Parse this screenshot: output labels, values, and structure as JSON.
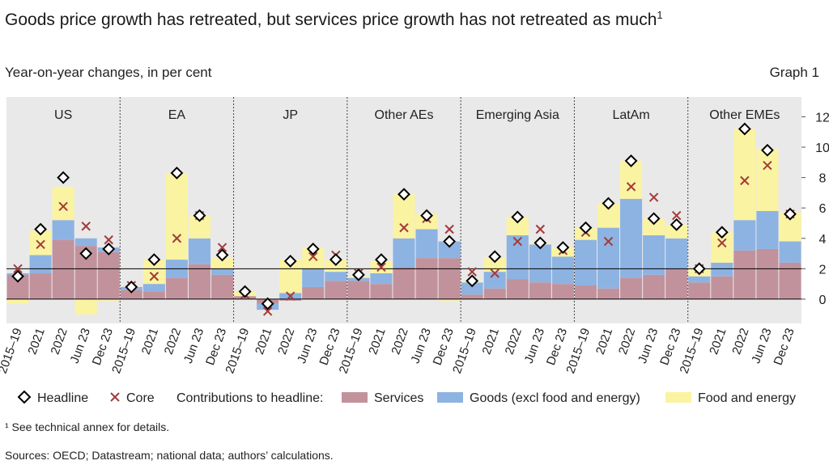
{
  "header": {
    "title": "Goods price growth has retreated, but services price growth has not retreated as much",
    "title_footnote_mark": "1",
    "subtitle": "Year-on-year changes, in per cent",
    "graph_label": "Graph 1"
  },
  "footer": {
    "footnote": "¹  See technical annex for details.",
    "sources": "Sources: OECD; Datastream; national data; authors’ calculations."
  },
  "colors": {
    "services": "#c2929c",
    "goods": "#8db3e2",
    "food": "#faf3a1",
    "panel_bg": "#e9e9e9",
    "headline_marker": "#000000",
    "core_marker": "#a23b3b"
  },
  "chart_data": {
    "type": "bar",
    "stacked": true,
    "ylim": [
      -1.6,
      13.3
    ],
    "yticks": [
      0,
      2,
      4,
      6,
      8,
      10,
      12
    ],
    "reference_lines": [
      0,
      2
    ],
    "period_labels": [
      "2015–19",
      "2021",
      "2022",
      "Jun 23",
      "Dec 23"
    ],
    "legend": {
      "headline": "Headline",
      "core": "Core",
      "contributions_label": "Contributions to headline:",
      "services": "Services",
      "goods": "Goods (excl food and energy)",
      "food": "Food and energy"
    },
    "groups": [
      {
        "name": "US",
        "services": [
          1.6,
          1.7,
          3.9,
          3.5,
          3.1
        ],
        "goods": [
          0.1,
          1.2,
          1.3,
          0.5,
          0.3
        ],
        "food": [
          -0.3,
          1.6,
          2.2,
          -1.0,
          -0.1
        ],
        "headline": [
          1.5,
          4.6,
          8.0,
          3.0,
          3.3
        ],
        "core": [
          2.0,
          3.6,
          6.1,
          4.8,
          3.9
        ]
      },
      {
        "name": "EA",
        "services": [
          0.6,
          0.5,
          1.4,
          2.3,
          1.6
        ],
        "goods": [
          0.2,
          0.5,
          1.2,
          1.7,
          0.4
        ],
        "food": [
          0.0,
          1.6,
          5.7,
          1.5,
          0.7
        ],
        "headline": [
          0.8,
          2.6,
          8.3,
          5.5,
          2.9
        ],
        "core": [
          0.9,
          1.5,
          4.0,
          5.5,
          3.4
        ]
      },
      {
        "name": "JP",
        "services": [
          0.2,
          -0.3,
          -0.1,
          0.8,
          1.2
        ],
        "goods": [
          0.0,
          -0.4,
          0.4,
          1.2,
          0.6
        ],
        "food": [
          0.3,
          0.0,
          2.2,
          1.4,
          0.8
        ],
        "headline": [
          0.5,
          -0.3,
          2.5,
          3.3,
          2.6
        ],
        "core": [
          0.3,
          -0.8,
          0.2,
          2.8,
          2.9
        ]
      },
      {
        "name": "Other AEs",
        "services": [
          1.2,
          1.0,
          2.1,
          2.7,
          2.7
        ],
        "goods": [
          0.2,
          0.7,
          1.9,
          1.9,
          1.1
        ],
        "food": [
          0.1,
          0.8,
          2.9,
          1.0,
          -0.1
        ],
        "headline": [
          1.6,
          2.6,
          6.9,
          5.5,
          3.8
        ],
        "core": [
          1.7,
          2.1,
          4.7,
          5.3,
          4.6
        ]
      },
      {
        "name": "Emerging Asia",
        "services": [
          0.3,
          0.7,
          1.3,
          1.1,
          1.0
        ],
        "goods": [
          0.8,
          1.1,
          2.9,
          2.5,
          1.8
        ],
        "food": [
          0.1,
          0.9,
          1.2,
          0.1,
          0.6
        ],
        "headline": [
          1.2,
          2.8,
          5.4,
          3.7,
          3.4
        ],
        "core": [
          1.8,
          1.7,
          3.8,
          4.6,
          3.2
        ]
      },
      {
        "name": "LatAm",
        "services": [
          0.9,
          0.7,
          1.4,
          1.6,
          2.0
        ],
        "goods": [
          3.0,
          4.0,
          5.2,
          2.6,
          2.0
        ],
        "food": [
          0.8,
          1.6,
          2.5,
          1.1,
          0.9
        ],
        "headline": [
          4.7,
          6.3,
          9.1,
          5.3,
          4.9
        ],
        "core": [
          4.4,
          3.8,
          7.4,
          6.7,
          5.5
        ]
      },
      {
        "name": "Other EMEs",
        "services": [
          1.1,
          1.5,
          3.2,
          3.3,
          2.4
        ],
        "goods": [
          0.4,
          0.9,
          2.0,
          2.5,
          1.4
        ],
        "food": [
          0.5,
          2.0,
          6.0,
          4.1,
          1.9
        ],
        "headline": [
          2.0,
          4.4,
          11.2,
          9.8,
          5.6
        ],
        "core": [
          2.0,
          3.7,
          7.8,
          8.8,
          5.6
        ]
      }
    ]
  }
}
